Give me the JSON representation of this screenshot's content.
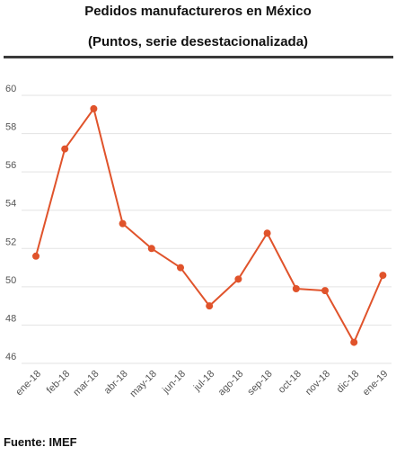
{
  "title": "Pedidos manufactureros en México",
  "subtitle": "(Puntos, serie desestacionalizada)",
  "source": "Fuente: IMEF",
  "colors": {
    "line": "#e0532b",
    "grid": "#e3e3e3",
    "text": "#555555"
  },
  "chart_data": {
    "type": "line",
    "title": "Pedidos manufactureros en México",
    "subtitle": "(Puntos, serie desestacionalizada)",
    "categories": [
      "ene-18",
      "feb-18",
      "mar-18",
      "abr-18",
      "may-18",
      "jun-18",
      "jul-18",
      "ago-18",
      "sep-18",
      "oct-18",
      "nov-18",
      "dic-18",
      "ene-19"
    ],
    "values": [
      51.6,
      57.2,
      59.3,
      53.3,
      52.0,
      51.0,
      49.0,
      50.4,
      52.8,
      49.9,
      49.8,
      47.1,
      50.6
    ],
    "yticks": [
      46,
      48,
      50,
      52,
      54,
      56,
      58,
      60
    ],
    "ylim": [
      46,
      60
    ],
    "grid": true,
    "legend": "none"
  }
}
